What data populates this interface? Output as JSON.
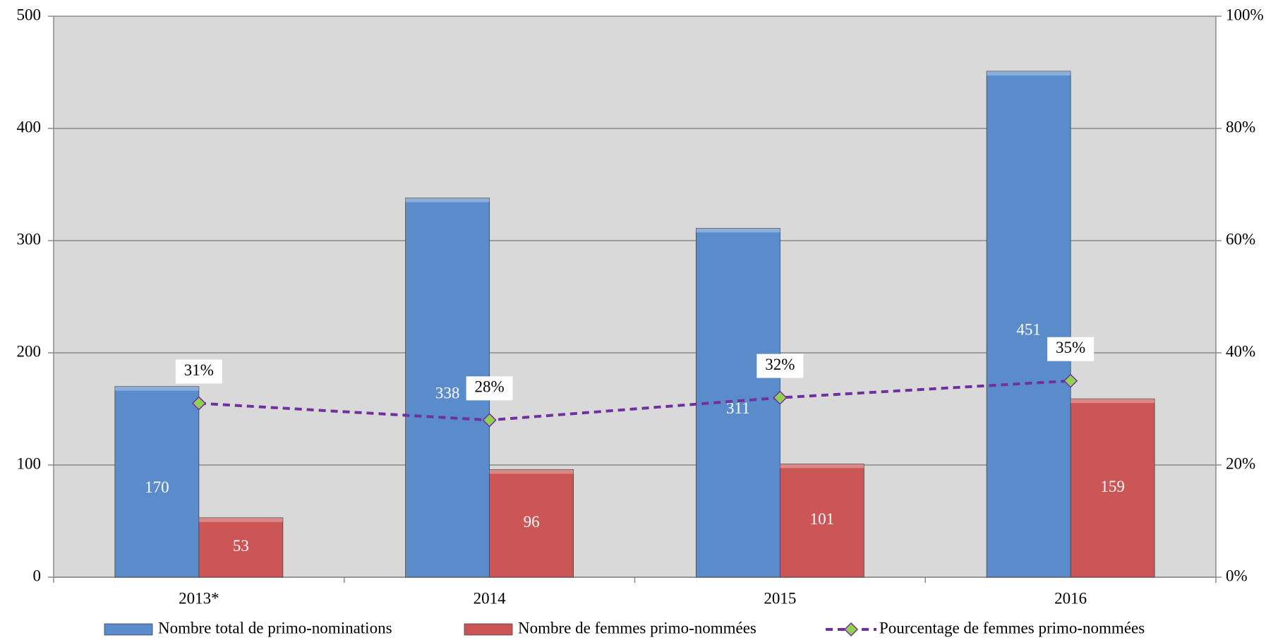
{
  "chart_data": {
    "type": "bar",
    "categories": [
      "2013*",
      "2014",
      "2015",
      "2016"
    ],
    "series": [
      {
        "name": "Nombre total de primo-nominations",
        "color": "#5a8ccc",
        "values": [
          170,
          338,
          311,
          451
        ]
      },
      {
        "name": "Nombre de femmes primo-nommées",
        "color": "#cc5555",
        "values": [
          53,
          96,
          101,
          159
        ]
      },
      {
        "name": "Pourcentage de femmes primo-nommées",
        "type": "line",
        "axis": "y2",
        "color": "#7030a0",
        "marker_color": "#92d050",
        "values": [
          31,
          28,
          32,
          35
        ],
        "value_labels": [
          "31%",
          "28%",
          "32%",
          "35%"
        ]
      }
    ],
    "ylim": [
      0,
      500
    ],
    "yticks": [
      0,
      100,
      200,
      300,
      400,
      500
    ],
    "y2lim": [
      0,
      100
    ],
    "y2ticks": [
      {
        "value": 0,
        "label": "0%"
      },
      {
        "value": 20,
        "label": "20%"
      },
      {
        "value": 40,
        "label": "40%"
      },
      {
        "value": 60,
        "label": "60%"
      },
      {
        "value": 80,
        "label": "80%"
      },
      {
        "value": 100,
        "label": "100%"
      }
    ],
    "grid": true,
    "legend": "bottom",
    "plot_background": "#d9d9d9"
  }
}
